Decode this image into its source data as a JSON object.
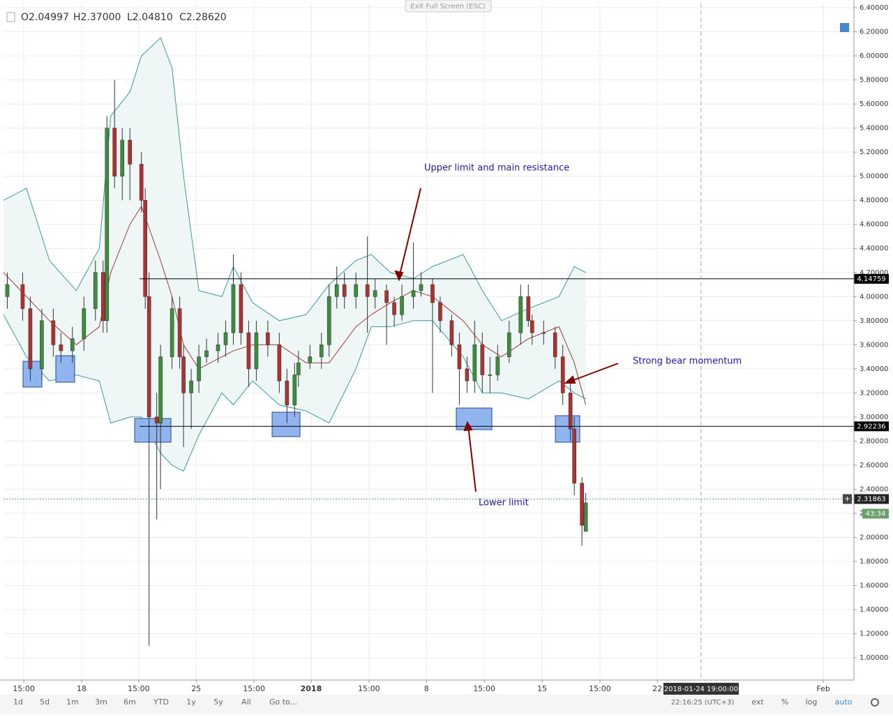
{
  "top_bar": {
    "button": "Exit Full Screen (ESC)"
  },
  "chart_data": {
    "type": "candlestick",
    "legend_text": [
      "O2.04997",
      "H2.37000",
      "L2.04810",
      "C2.28620"
    ],
    "x": [
      1,
      5,
      7,
      10,
      13,
      15,
      18,
      21,
      24,
      26,
      27,
      29,
      31,
      33,
      36,
      37,
      38,
      40,
      41,
      44,
      46,
      47,
      49,
      51,
      53,
      56,
      58,
      60,
      62,
      64,
      66,
      69,
      72,
      74,
      76,
      77,
      80,
      83,
      85,
      87,
      89,
      92,
      95,
      97,
      100,
      102,
      104,
      107,
      109,
      112,
      114,
      117,
      119,
      121,
      123,
      125,
      127,
      129,
      132,
      135,
      137,
      138,
      141,
      144,
      146,
      148,
      149,
      151,
      152
    ],
    "open": [
      4.0,
      4.1,
      3.9,
      3.4,
      3.8,
      3.6,
      3.55,
      3.65,
      3.9,
      4.2,
      3.8,
      5.4,
      5.0,
      5.3,
      5.1,
      4.8,
      4.0,
      3.0,
      2.95,
      3.5,
      3.9,
      3.5,
      3.2,
      3.3,
      3.5,
      3.55,
      3.6,
      3.7,
      4.1,
      3.7,
      3.4,
      3.7,
      3.6,
      3.3,
      3.1,
      3.35,
      3.45,
      3.5,
      3.6,
      4.0,
      4.1,
      4.0,
      4.1,
      4.0,
      4.05,
      3.95,
      3.85,
      4.0,
      4.05,
      4.1,
      3.95,
      3.8,
      3.6,
      3.4,
      3.3,
      3.6,
      3.35,
      3.35,
      3.5,
      3.7,
      4.0,
      3.8,
      3.7,
      3.7,
      3.5,
      3.2,
      2.9,
      2.45,
      2.04997
    ],
    "high": [
      4.2,
      4.2,
      4.0,
      3.9,
      3.9,
      3.7,
      3.75,
      4.0,
      4.3,
      4.3,
      5.5,
      5.8,
      5.4,
      5.4,
      5.2,
      4.9,
      4.2,
      3.2,
      3.6,
      4.0,
      4.0,
      3.6,
      3.4,
      3.6,
      3.65,
      3.7,
      3.8,
      4.35,
      4.2,
      3.8,
      3.8,
      3.8,
      3.7,
      3.4,
      3.45,
      3.55,
      3.6,
      3.7,
      4.1,
      4.25,
      4.2,
      4.2,
      4.5,
      4.15,
      4.1,
      4.0,
      4.1,
      4.45,
      4.2,
      4.15,
      4.0,
      3.85,
      3.7,
      3.5,
      3.8,
      3.7,
      3.5,
      3.6,
      3.8,
      4.1,
      4.1,
      3.85,
      3.8,
      3.75,
      3.6,
      3.3,
      3.0,
      2.5,
      2.37
    ],
    "low": [
      3.9,
      3.8,
      3.3,
      3.3,
      3.5,
      3.45,
      3.45,
      3.55,
      3.8,
      3.7,
      3.7,
      4.9,
      4.8,
      4.8,
      4.7,
      3.9,
      1.1,
      2.15,
      2.4,
      3.4,
      3.4,
      2.75,
      2.9,
      3.2,
      3.45,
      3.45,
      3.5,
      3.6,
      3.6,
      3.25,
      3.3,
      3.5,
      3.2,
      2.95,
      3.0,
      3.25,
      3.4,
      3.4,
      3.5,
      3.9,
      3.9,
      3.9,
      3.7,
      3.9,
      3.6,
      3.75,
      3.8,
      3.9,
      4.0,
      3.2,
      3.7,
      3.5,
      3.1,
      3.2,
      3.2,
      3.2,
      3.2,
      3.3,
      3.45,
      3.6,
      3.75,
      3.6,
      3.6,
      3.4,
      3.1,
      2.8,
      2.35,
      1.93,
      2.0481
    ],
    "close": [
      4.1,
      3.9,
      3.4,
      3.8,
      3.6,
      3.55,
      3.65,
      3.9,
      4.2,
      3.8,
      5.4,
      5.0,
      5.3,
      5.1,
      4.8,
      4.0,
      3.0,
      2.95,
      3.5,
      3.9,
      3.5,
      3.2,
      3.3,
      3.5,
      3.55,
      3.6,
      3.7,
      4.1,
      3.7,
      3.4,
      3.7,
      3.6,
      3.3,
      3.1,
      3.35,
      3.45,
      3.5,
      3.6,
      4.0,
      4.1,
      4.0,
      4.1,
      4.0,
      4.05,
      3.95,
      3.85,
      4.0,
      4.05,
      4.1,
      3.95,
      3.8,
      3.6,
      3.4,
      3.3,
      3.6,
      3.35,
      3.35,
      3.5,
      3.7,
      4.0,
      3.8,
      3.7,
      3.7,
      3.5,
      3.2,
      2.9,
      2.45,
      2.1,
      2.2862
    ],
    "up_color": "#3c8f3c",
    "down_color": "#b23030",
    "bands": {
      "x": [
        0,
        6,
        12,
        19,
        25,
        28,
        33,
        36,
        41,
        44,
        47,
        51,
        57,
        60,
        65,
        72,
        79,
        85,
        92,
        96,
        101,
        107,
        112,
        120,
        125,
        130,
        137,
        145,
        149,
        152
      ],
      "upper": [
        4.8,
        4.9,
        4.3,
        4.05,
        4.4,
        5.5,
        5.7,
        6.0,
        6.15,
        5.9,
        5.0,
        4.05,
        4.0,
        4.25,
        3.95,
        3.8,
        3.85,
        4.1,
        4.3,
        4.35,
        4.2,
        4.15,
        4.25,
        4.35,
        4.05,
        3.8,
        3.9,
        4.0,
        4.25,
        4.2
      ],
      "middle": [
        4.2,
        4.0,
        3.8,
        3.6,
        3.75,
        4.2,
        4.6,
        4.75,
        4.3,
        4.0,
        3.6,
        3.4,
        3.5,
        3.55,
        3.6,
        3.6,
        3.45,
        3.45,
        3.75,
        3.85,
        3.95,
        4.05,
        4.0,
        3.8,
        3.6,
        3.5,
        3.65,
        3.75,
        3.45,
        3.1
      ],
      "lower": [
        3.85,
        3.5,
        3.3,
        3.35,
        3.3,
        2.95,
        3.0,
        3.0,
        2.7,
        2.6,
        2.55,
        2.85,
        3.2,
        3.1,
        3.3,
        3.1,
        3.05,
        2.95,
        3.4,
        3.75,
        3.75,
        3.8,
        3.8,
        3.5,
        3.2,
        3.2,
        3.15,
        3.3,
        3.2,
        3.15
      ],
      "color": "#3a9a9a",
      "middle_color": "#a33a3a",
      "fill": "#eef7f6"
    },
    "xlim": [
      0,
      222
    ],
    "ylim": [
      0.815,
      6.435
    ],
    "xticks": [
      {
        "value": 5.3,
        "label": "15:00"
      },
      {
        "value": 20.4,
        "label": "18"
      },
      {
        "value": 35.3,
        "label": "15:00"
      },
      {
        "value": 50.3,
        "label": "25"
      },
      {
        "value": 65.4,
        "label": "15:00"
      },
      {
        "value": 80.3,
        "label": "2018"
      },
      {
        "value": 95.4,
        "label": "15:00"
      },
      {
        "value": 110.4,
        "label": "8"
      },
      {
        "value": 125.5,
        "label": "15:00"
      },
      {
        "value": 140.6,
        "label": "15"
      },
      {
        "value": 155.7,
        "label": "15:00"
      },
      {
        "value": 170.7,
        "label": "22"
      },
      {
        "value": 214,
        "label": "Feb"
      }
    ],
    "yticks": [
      {
        "value": 1.0,
        "label": "1.00000"
      },
      {
        "value": 1.2,
        "label": "1.20000"
      },
      {
        "value": 1.4,
        "label": "1.40000"
      },
      {
        "value": 1.6,
        "label": "1.60000"
      },
      {
        "value": 1.8,
        "label": "1.80000"
      },
      {
        "value": 2.0,
        "label": "2.00000"
      },
      {
        "value": 2.2,
        "label": "2.20000"
      },
      {
        "value": 2.4,
        "label": "2.40000"
      },
      {
        "value": 2.6,
        "label": "2.60000"
      },
      {
        "value": 2.8,
        "label": "2.80000"
      },
      {
        "value": 3.0,
        "label": "3.00000"
      },
      {
        "value": 3.2,
        "label": "3.20000"
      },
      {
        "value": 3.4,
        "label": "3.40000"
      },
      {
        "value": 3.6,
        "label": "3.60000"
      },
      {
        "value": 3.8,
        "label": "3.80000"
      },
      {
        "value": 4.0,
        "label": "4.00000"
      },
      {
        "value": 4.2,
        "label": "4.20000"
      },
      {
        "value": 4.4,
        "label": "4.40000"
      },
      {
        "value": 4.6,
        "label": "4.60000"
      },
      {
        "value": 4.8,
        "label": "4.80000"
      },
      {
        "value": 5.0,
        "label": "5.00000"
      },
      {
        "value": 5.2,
        "label": "5.20000"
      },
      {
        "value": 5.4,
        "label": "5.40000"
      },
      {
        "value": 5.6,
        "label": "5.60000"
      },
      {
        "value": 5.8,
        "label": "5.80000"
      },
      {
        "value": 6.0,
        "label": "6.00000"
      },
      {
        "value": 6.2,
        "label": "6.20000"
      },
      {
        "value": 6.4,
        "label": "6.40000"
      }
    ],
    "grid": true,
    "hlines": [
      {
        "value": 4.14759,
        "label": "4.14759"
      },
      {
        "value": 2.92236,
        "label": "2.92236"
      }
    ],
    "last_price": {
      "value": 2.31863,
      "label": "2.31863"
    },
    "countdown": "43:34",
    "crosshair": {
      "value": 182.1,
      "label": "2018-01-24 19:00:00"
    },
    "annotations": [
      "Upper limit and main resistance",
      "Strong bear momentum",
      "Lower limit"
    ]
  },
  "toolbar": {
    "ranges": [
      "1d",
      "5d",
      "1m",
      "3m",
      "6m",
      "YTD",
      "1y",
      "5y",
      "All"
    ],
    "goto": "Go to...",
    "clock": "22:16:25 (UTC+3)",
    "options": [
      "ext",
      "%",
      "log",
      "auto"
    ]
  }
}
